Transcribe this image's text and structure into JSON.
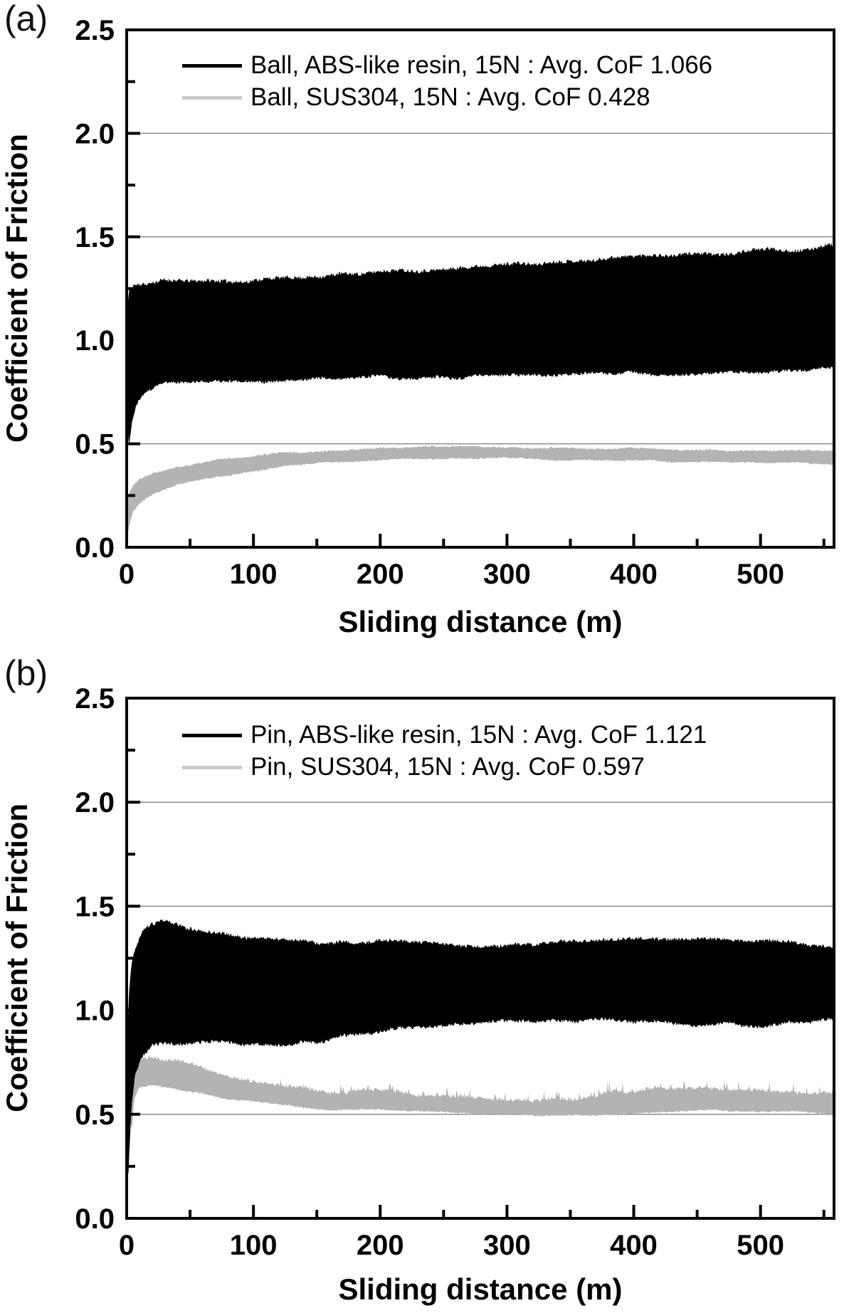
{
  "style": {
    "background": "#ffffff",
    "axis_color": "#000000",
    "grid_color": "#8c8c8c",
    "text_color": "#000000"
  },
  "chart_data": [
    {
      "panel_label": "(a)",
      "type": "area",
      "title": "",
      "xlabel": "Sliding distance (m)",
      "ylabel": "Coefficient of Friction",
      "xlim": [
        0,
        558
      ],
      "ylim": [
        0,
        2.5
      ],
      "xticks": [
        0,
        100,
        200,
        300,
        400,
        500
      ],
      "xtick_labels": [
        "0",
        "100",
        "200",
        "300",
        "400",
        "500"
      ],
      "x_minor_step": 50,
      "yticks": [
        0,
        0.5,
        1.0,
        1.5,
        2.0,
        2.5
      ],
      "ytick_labels": [
        "0.0",
        "0.5",
        "1.0",
        "1.5",
        "2.0",
        "2.5"
      ],
      "y_minor_step": 0.25,
      "grid_y": [
        0.5,
        1.0,
        1.5,
        2.0
      ],
      "grid_on": true,
      "legend_position": "top-left-inside",
      "series": [
        {
          "id": "ball-abs-resin",
          "name": "Ball, ABS-like resin, 15N : Avg. CoF 1.066",
          "avg_cof": 1.066,
          "color": "#000000",
          "legend_color": "#000000",
          "band": {
            "x": [
              0,
              1,
              2,
              4,
              8,
              15,
              30,
              60,
              90,
              120,
              160,
              200,
              250,
              300,
              350,
              400,
              450,
              500,
              530,
              558
            ],
            "lower": [
              0.7,
              0.55,
              0.5,
              0.6,
              0.7,
              0.76,
              0.79,
              0.8,
              0.8,
              0.8,
              0.81,
              0.82,
              0.82,
              0.83,
              0.83,
              0.84,
              0.84,
              0.85,
              0.85,
              0.86
            ],
            "upper": [
              1.05,
              1.2,
              1.24,
              1.26,
              1.27,
              1.27,
              1.29,
              1.28,
              1.29,
              1.3,
              1.31,
              1.33,
              1.35,
              1.37,
              1.38,
              1.4,
              1.42,
              1.43,
              1.44,
              1.46
            ]
          },
          "noise": {
            "amp_lower": 0.018,
            "amp_upper": 0.022,
            "seed": 11
          }
        },
        {
          "id": "ball-sus304",
          "name": "Ball, SUS304, 15N : Avg. CoF 0.428",
          "avg_cof": 0.428,
          "color": "#b3b3b3",
          "legend_color": "#c9c9c9",
          "band": {
            "x": [
              0,
              2,
              5,
              10,
              20,
              40,
              70,
              100,
              130,
              160,
              200,
              250,
              300,
              350,
              400,
              450,
              500,
              530,
              558
            ],
            "lower": [
              0.04,
              0.1,
              0.17,
              0.21,
              0.25,
              0.3,
              0.34,
              0.37,
              0.4,
              0.41,
              0.42,
              0.43,
              0.43,
              0.42,
              0.42,
              0.41,
              0.41,
              0.41,
              0.4
            ],
            "upper": [
              0.22,
              0.26,
              0.3,
              0.33,
              0.36,
              0.39,
              0.42,
              0.44,
              0.46,
              0.47,
              0.48,
              0.49,
              0.48,
              0.48,
              0.48,
              0.47,
              0.47,
              0.47,
              0.47
            ]
          },
          "noise": {
            "amp_lower": 0.008,
            "amp_upper": 0.01,
            "seed": 22
          }
        }
      ]
    },
    {
      "panel_label": "(b)",
      "type": "area",
      "title": "",
      "xlabel": "Sliding distance (m)",
      "ylabel": "Coefficient of Friction",
      "xlim": [
        0,
        558
      ],
      "ylim": [
        0,
        2.5
      ],
      "xticks": [
        0,
        100,
        200,
        300,
        400,
        500
      ],
      "xtick_labels": [
        "0",
        "100",
        "200",
        "300",
        "400",
        "500"
      ],
      "x_minor_step": 50,
      "yticks": [
        0,
        0.5,
        1.0,
        1.5,
        2.0,
        2.5
      ],
      "ytick_labels": [
        "0.0",
        "0.5",
        "1.0",
        "1.5",
        "2.0",
        "2.5"
      ],
      "y_minor_step": 0.25,
      "grid_y": [
        0.5,
        1.0,
        1.5,
        2.0
      ],
      "grid_on": true,
      "legend_position": "top-left-inside",
      "series": [
        {
          "id": "pin-abs-resin",
          "name": "Pin, ABS-like resin, 15N : Avg. CoF 1.121",
          "avg_cof": 1.121,
          "color": "#000000",
          "legend_color": "#000000",
          "band": {
            "x": [
              0,
              1,
              2,
              4,
              7,
              12,
              20,
              30,
              45,
              60,
              80,
              100,
              130,
              160,
              200,
              250,
              300,
              350,
              400,
              450,
              500,
              530,
              558
            ],
            "lower": [
              0.45,
              0.15,
              0.3,
              0.55,
              0.7,
              0.78,
              0.84,
              0.85,
              0.84,
              0.84,
              0.84,
              0.84,
              0.83,
              0.86,
              0.9,
              0.93,
              0.94,
              0.95,
              0.95,
              0.93,
              0.93,
              0.94,
              0.95
            ],
            "upper": [
              0.8,
              0.95,
              1.1,
              1.22,
              1.3,
              1.37,
              1.41,
              1.43,
              1.41,
              1.38,
              1.36,
              1.35,
              1.33,
              1.32,
              1.33,
              1.32,
              1.31,
              1.33,
              1.34,
              1.34,
              1.33,
              1.32,
              1.3
            ]
          },
          "noise": {
            "amp_lower": 0.02,
            "amp_upper": 0.02,
            "seed": 33
          }
        },
        {
          "id": "pin-sus304",
          "name": "Pin, SUS304, 15N : Avg. CoF 0.597",
          "avg_cof": 0.597,
          "color": "#b3b3b3",
          "legend_color": "#c9c9c9",
          "band": {
            "x": [
              0,
              2,
              4,
              6,
              10,
              20,
              40,
              60,
              80,
              100,
              130,
              160,
              200,
              250,
              300,
              340,
              380,
              420,
              460,
              500,
              530,
              558
            ],
            "lower": [
              0.62,
              0.55,
              0.42,
              0.58,
              0.63,
              0.64,
              0.62,
              0.6,
              0.57,
              0.56,
              0.54,
              0.52,
              0.52,
              0.51,
              0.5,
              0.49,
              0.5,
              0.51,
              0.52,
              0.51,
              0.51,
              0.5
            ],
            "upper": [
              0.78,
              0.8,
              0.79,
              0.78,
              0.78,
              0.78,
              0.76,
              0.72,
              0.68,
              0.66,
              0.63,
              0.61,
              0.61,
              0.59,
              0.57,
              0.57,
              0.6,
              0.62,
              0.63,
              0.62,
              0.61,
              0.6
            ]
          },
          "noise": {
            "amp_lower": 0.008,
            "amp_upper": 0.02,
            "seed": 44,
            "spike_prob": 0.1,
            "spike_mag": 0.045,
            "spike_from": 120
          }
        }
      ]
    }
  ]
}
